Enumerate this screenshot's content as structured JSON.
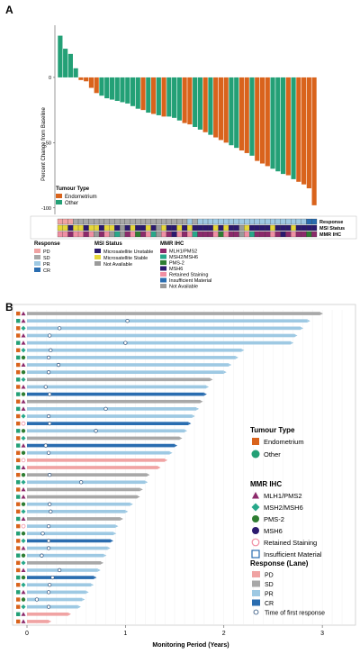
{
  "panel_a": {
    "letter": "A",
    "ylabel": "Percent Change from Baseline",
    "yticks": [
      0,
      -50,
      -100
    ],
    "legend_title": "Tumour Type",
    "legend": [
      "Endometrium",
      "Other"
    ],
    "track_labels": [
      "Response",
      "MSI Status",
      "MMR IHC"
    ],
    "response_legend": {
      "title": "Response",
      "items": [
        "PD",
        "SD",
        "PR",
        "CR"
      ]
    },
    "msi_legend": {
      "title": "MSI Status",
      "items": [
        "Microsatellite Unstable",
        "Microsatellite Stable",
        "Not Available"
      ]
    },
    "mmr_legend": {
      "title": "MMR IHC",
      "items": [
        "MLH1/PMS2",
        "MSH2/MSH6",
        "PMS-2",
        "MSH6",
        "Retained Staining",
        "Insufficient Material",
        "Not Available"
      ]
    }
  },
  "panel_b": {
    "letter": "B",
    "xlabel": "Monitoring Period (Years)",
    "xticks": [
      0,
      1,
      2,
      3
    ],
    "legend_tumour_title": "Tumour Type",
    "legend_tumour": [
      "Endometrium",
      "Other"
    ],
    "legend_mmr_title": "MMR IHC",
    "legend_mmr": [
      "MLH1/PMS2",
      "MSH2/MSH6",
      "PMS-2",
      "MSH6",
      "Retained Staining",
      "Insufficient Material"
    ],
    "legend_resp_title": "Response (Lane)",
    "legend_resp": [
      "PD",
      "SD",
      "PR",
      "CR",
      "Time of first response"
    ]
  },
  "colors": {
    "endometrium": "#d9631c",
    "other": "#23a076",
    "PD": "#f0a3a3",
    "SD": "#a8a8a8",
    "PR": "#9ec9e3",
    "CR": "#2a6db0",
    "MSI_unstable": "#2b1a6e",
    "MSI_stable": "#e5d63a",
    "MSI_na": "#9a9a9a",
    "MLH1/PMS2": "#8c2a6b",
    "MSH2/MSH6": "#27a88a",
    "PMS-2": "#2e7d32",
    "MSH6": "#2b1a6e",
    "Retained Staining": "#f08fa3",
    "Insufficient Material": "#2a6db0",
    "Not Available": "#9a9a9a"
  },
  "chart_data": [
    {
      "type": "bar",
      "title": "",
      "ylabel": "Percent Change from Baseline",
      "ylim": [
        -105,
        40
      ],
      "series": [
        {
          "name": "Endometrium",
          "tumour": [
            "O",
            "O",
            "O",
            "O",
            "E",
            "E",
            "E",
            "E",
            "O",
            "O",
            "O",
            "O",
            "O",
            "O",
            "O",
            "O",
            "E",
            "O",
            "E",
            "O",
            "E",
            "O",
            "O",
            "O",
            "E",
            "E",
            "O",
            "O",
            "E",
            "O",
            "E",
            "E",
            "E",
            "O",
            "O",
            "E",
            "E",
            "O",
            "E",
            "E",
            "E",
            "O",
            "O",
            "O",
            "E",
            "O",
            "E",
            "E",
            "E",
            "E"
          ]
        }
      ],
      "values": [
        32,
        22,
        18,
        7,
        -2,
        -3,
        -8,
        -12,
        -14,
        -16,
        -17,
        -18,
        -19,
        -20,
        -22,
        -24,
        -25,
        -27,
        -28,
        -29,
        -30,
        -30,
        -31,
        -33,
        -35,
        -36,
        -38,
        -40,
        -42,
        -44,
        -46,
        -48,
        -50,
        -52,
        -54,
        -56,
        -58,
        -60,
        -64,
        -66,
        -68,
        -70,
        -72,
        -74,
        -75,
        -78,
        -80,
        -82,
        -85,
        -98
      ],
      "response": [
        "PD",
        "PD",
        "PD",
        "SD",
        "SD",
        "SD",
        "SD",
        "SD",
        "SD",
        "SD",
        "SD",
        "SD",
        "SD",
        "SD",
        "SD",
        "SD",
        "SD",
        "SD",
        "SD",
        "SD",
        "SD",
        "SD",
        "SD",
        "SD",
        "SD",
        "PR",
        "SD",
        "PR",
        "PR",
        "PR",
        "PR",
        "PR",
        "PR",
        "PR",
        "PR",
        "PR",
        "PR",
        "PR",
        "PR",
        "PR",
        "PR",
        "PR",
        "PR",
        "PR",
        "PR",
        "PR",
        "PR",
        "PR",
        "CR",
        "CR"
      ],
      "msi": [
        "S",
        "S",
        "U",
        "S",
        "S",
        "U",
        "S",
        "S",
        "U",
        "S",
        "S",
        "U",
        "N",
        "U",
        "S",
        "U",
        "U",
        "S",
        "U",
        "N",
        "S",
        "U",
        "U",
        "S",
        "U",
        "S",
        "U",
        "U",
        "U",
        "U",
        "S",
        "U",
        "S",
        "U",
        "U",
        "N",
        "S",
        "U",
        "U",
        "U",
        "U",
        "S",
        "U",
        "U",
        "U",
        "S",
        "U",
        "U",
        "U",
        "U"
      ],
      "mmr": [
        "R",
        "R",
        "M",
        "R",
        "R",
        "M",
        "R",
        "N",
        "M",
        "R",
        "N",
        "H",
        "N",
        "M",
        "R",
        "P",
        "M",
        "R",
        "H",
        "N",
        "R",
        "M",
        "S",
        "R",
        "M",
        "R",
        "H",
        "M",
        "M",
        "M",
        "R",
        "P",
        "R",
        "M",
        "M",
        "N",
        "R",
        "H",
        "M",
        "M",
        "M",
        "R",
        "M",
        "S",
        "M",
        "R",
        "M",
        "M",
        "P",
        "M"
      ]
    },
    {
      "type": "bar",
      "title": "",
      "xlabel": "Monitoring Period (Years)",
      "xlim": [
        0,
        3.2
      ],
      "lanes": [
        {
          "duration": 2.98,
          "response": "SD",
          "first": null
        },
        {
          "duration": 2.85,
          "response": "PR",
          "first": 1.02
        },
        {
          "duration": 2.78,
          "response": "PR",
          "first": 0.33
        },
        {
          "duration": 2.72,
          "response": "PR",
          "first": 0.23
        },
        {
          "duration": 2.68,
          "response": "PR",
          "first": 1.0
        },
        {
          "duration": 2.18,
          "response": "PR",
          "first": 0.24
        },
        {
          "duration": 2.12,
          "response": "PR",
          "first": 0.22
        },
        {
          "duration": 2.05,
          "response": "PR",
          "first": 0.32
        },
        {
          "duration": 2.0,
          "response": "PR",
          "first": 0.22
        },
        {
          "duration": 1.86,
          "response": "SD",
          "first": null
        },
        {
          "duration": 1.82,
          "response": "PR",
          "first": 0.19
        },
        {
          "duration": 1.8,
          "response": "CR",
          "first": 0.23
        },
        {
          "duration": 1.76,
          "response": "SD",
          "first": null
        },
        {
          "duration": 1.72,
          "response": "PR",
          "first": 0.8
        },
        {
          "duration": 1.68,
          "response": "PR",
          "first": 0.22
        },
        {
          "duration": 1.64,
          "response": "CR",
          "first": 0.23
        },
        {
          "duration": 1.6,
          "response": "PR",
          "first": 0.7
        },
        {
          "duration": 1.55,
          "response": "SD",
          "first": null
        },
        {
          "duration": 1.5,
          "response": "CR",
          "first": 0.19
        },
        {
          "duration": 1.45,
          "response": "PR",
          "first": 0.22
        },
        {
          "duration": 1.4,
          "response": "PD",
          "first": null
        },
        {
          "duration": 1.33,
          "response": "PD",
          "first": null
        },
        {
          "duration": 1.22,
          "response": "SD",
          "first": 0.23
        },
        {
          "duration": 1.2,
          "response": "PR",
          "first": 0.55
        },
        {
          "duration": 1.15,
          "response": "SD",
          "first": null
        },
        {
          "duration": 1.12,
          "response": "SD",
          "first": null
        },
        {
          "duration": 1.05,
          "response": "PR",
          "first": 0.23
        },
        {
          "duration": 1.0,
          "response": "PR",
          "first": 0.24
        },
        {
          "duration": 0.95,
          "response": "SD",
          "first": null
        },
        {
          "duration": 0.9,
          "response": "PR",
          "first": 0.22
        },
        {
          "duration": 0.88,
          "response": "PR",
          "first": 0.16
        },
        {
          "duration": 0.85,
          "response": "CR",
          "first": 0.22
        },
        {
          "duration": 0.82,
          "response": "PR",
          "first": 0.22
        },
        {
          "duration": 0.78,
          "response": "PR",
          "first": 0.15
        },
        {
          "duration": 0.75,
          "response": "SD",
          "first": null
        },
        {
          "duration": 0.72,
          "response": "PR",
          "first": 0.33
        },
        {
          "duration": 0.68,
          "response": "CR",
          "first": 0.26
        },
        {
          "duration": 0.65,
          "response": "PR",
          "first": 0.23
        },
        {
          "duration": 0.6,
          "response": "PR",
          "first": 0.22
        },
        {
          "duration": 0.56,
          "response": "PR",
          "first": 0.1
        },
        {
          "duration": 0.52,
          "response": "PR",
          "first": 0.22
        },
        {
          "duration": 0.42,
          "response": "PD",
          "first": null
        },
        {
          "duration": 0.22,
          "response": "PD",
          "first": null
        }
      ],
      "tumour": [
        "E",
        "O",
        "E",
        "E",
        "O",
        "E",
        "O",
        "E",
        "E",
        "O",
        "E",
        "O",
        "E",
        "O",
        "E",
        "E",
        "O",
        "E",
        "O",
        "E",
        "E",
        "O",
        "E",
        "O",
        "E",
        "O",
        "E",
        "E",
        "O",
        "E",
        "O",
        "E",
        "E",
        "O",
        "E",
        "E",
        "O",
        "E",
        "O",
        "E",
        "E",
        "O",
        "E"
      ],
      "mmr": [
        "H",
        "H",
        "S",
        "H",
        "H",
        "S",
        "P",
        "H",
        "P",
        "S",
        "H",
        "P",
        "H",
        "H",
        "S",
        "R",
        "P",
        "S",
        "H",
        "P",
        "R",
        "H",
        "P",
        "S",
        "H",
        "H",
        "P",
        "S",
        "H",
        "R",
        "P",
        "S",
        "H",
        "P",
        "S",
        "H",
        "P",
        "S",
        "H",
        "P",
        "S",
        "H",
        "H"
      ]
    }
  ]
}
